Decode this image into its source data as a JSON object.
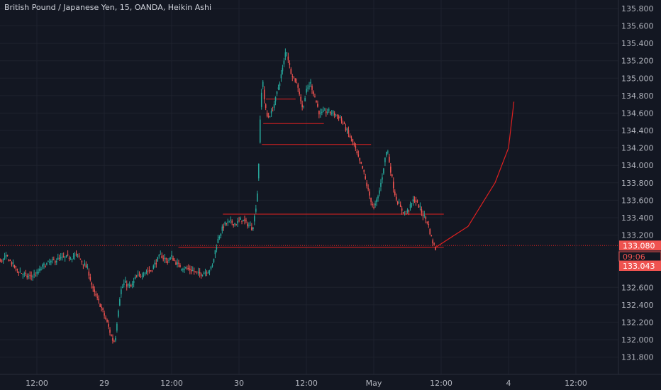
{
  "header": {
    "title": "British Pound / Japanese Yen, 15, OANDA, Heikin Ashi"
  },
  "colors": {
    "background": "#131722",
    "grid": "#1e222d",
    "axis_text": "#b2b5be",
    "up": "#26a69a",
    "down": "#ef5350",
    "drawing": "#e02020",
    "price_label": "#ef5350"
  },
  "chart_data": {
    "type": "candlestick",
    "style": "Heikin Ashi",
    "grid": true,
    "y_axis_position": "right",
    "ylim": [
      131.7,
      135.87
    ],
    "y_ticks": [
      131.8,
      132.0,
      132.2,
      132.4,
      132.6,
      133.2,
      133.4,
      133.6,
      133.8,
      134.0,
      134.2,
      134.4,
      134.6,
      134.8,
      135.0,
      135.2,
      135.4,
      135.6,
      135.8
    ],
    "x_ticks": [
      {
        "label": "12:00",
        "t": 0.5
      },
      {
        "label": "29",
        "t": 1.0
      },
      {
        "label": "12:00",
        "t": 1.5
      },
      {
        "label": "30",
        "t": 2.0
      },
      {
        "label": "12:00",
        "t": 2.5
      },
      {
        "label": "May",
        "t": 3.0
      },
      {
        "label": "12:00",
        "t": 3.5
      },
      {
        "label": "4",
        "t": 4.0
      },
      {
        "label": "12:00",
        "t": 4.5
      }
    ],
    "t_units": "days from 28 00:00",
    "close_path": [
      [
        -0.26,
        133.13
      ],
      [
        -0.2,
        133.2
      ],
      [
        -0.13,
        133.45
      ],
      [
        -0.12,
        133.55
      ],
      [
        -0.09,
        133.45
      ],
      [
        -0.03,
        133.28
      ],
      [
        0.0,
        133.3
      ],
      [
        0.05,
        133.2
      ],
      [
        0.07,
        132.95
      ],
      [
        0.12,
        132.85
      ],
      [
        0.18,
        133.05
      ],
      [
        0.23,
        132.9
      ],
      [
        0.28,
        132.95
      ],
      [
        0.35,
        132.8
      ],
      [
        0.43,
        132.72
      ],
      [
        0.5,
        132.75
      ],
      [
        0.55,
        132.85
      ],
      [
        0.65,
        132.92
      ],
      [
        0.75,
        132.95
      ],
      [
        0.8,
        132.97
      ],
      [
        0.88,
        132.8
      ],
      [
        0.92,
        132.55
      ],
      [
        0.97,
        132.4
      ],
      [
        1.02,
        132.2
      ],
      [
        1.06,
        132.0
      ],
      [
        1.08,
        131.98
      ],
      [
        1.1,
        132.3
      ],
      [
        1.12,
        132.55
      ],
      [
        1.15,
        132.65
      ],
      [
        1.2,
        132.6
      ],
      [
        1.23,
        132.7
      ],
      [
        1.3,
        132.78
      ],
      [
        1.35,
        132.8
      ],
      [
        1.38,
        132.88
      ],
      [
        1.42,
        132.97
      ],
      [
        1.47,
        132.9
      ],
      [
        1.5,
        132.95
      ],
      [
        1.55,
        132.85
      ],
      [
        1.6,
        132.82
      ],
      [
        1.65,
        132.8
      ],
      [
        1.7,
        132.75
      ],
      [
        1.75,
        132.78
      ],
      [
        1.8,
        132.82
      ],
      [
        1.82,
        133.0
      ],
      [
        1.85,
        133.18
      ],
      [
        1.89,
        133.32
      ],
      [
        1.94,
        133.35
      ],
      [
        1.98,
        133.33
      ],
      [
        2.02,
        133.38
      ],
      [
        2.06,
        133.33
      ],
      [
        2.1,
        133.28
      ],
      [
        2.12,
        133.45
      ],
      [
        2.14,
        133.75
      ],
      [
        2.15,
        134.2
      ],
      [
        2.16,
        134.65
      ],
      [
        2.17,
        134.9
      ],
      [
        2.18,
        135.0
      ],
      [
        2.19,
        134.7
      ],
      [
        2.21,
        134.55
      ],
      [
        2.24,
        134.6
      ],
      [
        2.27,
        134.75
      ],
      [
        2.3,
        134.95
      ],
      [
        2.33,
        135.15
      ],
      [
        2.35,
        135.35
      ],
      [
        2.38,
        135.1
      ],
      [
        2.41,
        135.0
      ],
      [
        2.44,
        134.9
      ],
      [
        2.47,
        134.65
      ],
      [
        2.5,
        134.85
      ],
      [
        2.53,
        134.95
      ],
      [
        2.56,
        134.8
      ],
      [
        2.6,
        134.58
      ],
      [
        2.65,
        134.62
      ],
      [
        2.7,
        134.6
      ],
      [
        2.75,
        134.55
      ],
      [
        2.8,
        134.4
      ],
      [
        2.85,
        134.25
      ],
      [
        2.88,
        134.1
      ],
      [
        2.92,
        133.95
      ],
      [
        2.96,
        133.7
      ],
      [
        3.0,
        133.5
      ],
      [
        3.03,
        133.62
      ],
      [
        3.06,
        133.85
      ],
      [
        3.08,
        134.05
      ],
      [
        3.1,
        134.2
      ],
      [
        3.13,
        133.9
      ],
      [
        3.16,
        133.65
      ],
      [
        3.2,
        133.5
      ],
      [
        3.24,
        133.45
      ],
      [
        3.27,
        133.52
      ],
      [
        3.3,
        133.62
      ],
      [
        3.33,
        133.55
      ],
      [
        3.36,
        133.45
      ],
      [
        3.4,
        133.35
      ],
      [
        3.43,
        133.15
      ],
      [
        3.46,
        133.04
      ]
    ],
    "horizontal_levels": [
      {
        "price": 134.76,
        "t_start": 2.2,
        "t_end": 2.42
      },
      {
        "price": 134.48,
        "t_start": 2.18,
        "t_end": 2.63
      },
      {
        "price": 134.24,
        "t_start": 2.17,
        "t_end": 2.98
      },
      {
        "price": 133.44,
        "t_start": 1.88,
        "t_end": 3.52
      },
      {
        "price": 133.06,
        "t_start": 1.55,
        "t_end": 3.52
      }
    ],
    "dotted_level": 133.08,
    "projection_curve": [
      [
        3.46,
        133.06
      ],
      [
        3.7,
        133.3
      ],
      [
        3.9,
        133.8
      ],
      [
        4.0,
        134.2
      ],
      [
        4.04,
        134.73
      ]
    ],
    "price_labels": [
      {
        "value": "133.080",
        "price": 133.08
      },
      {
        "value": "09:06",
        "price": 132.96
      },
      {
        "value": "133.043",
        "price": 132.84
      }
    ]
  }
}
